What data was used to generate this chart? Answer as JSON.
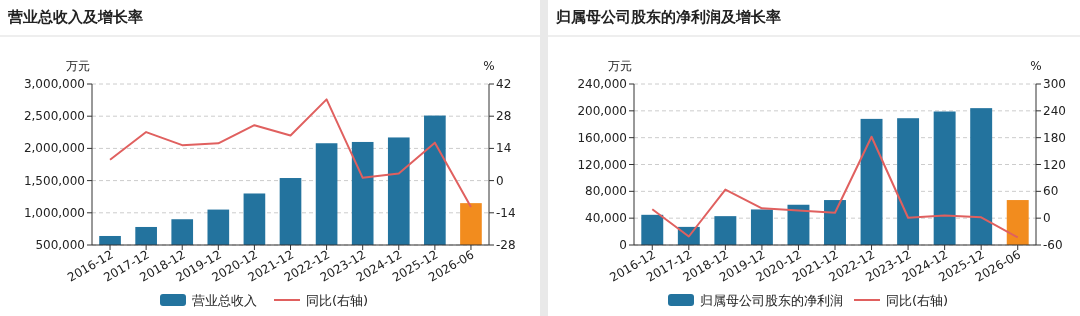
{
  "chart_data": [
    {
      "type": "bar",
      "title": "营业总收入及增长率",
      "ylabel": "万元",
      "y2label": "%",
      "categories": [
        "2016-12",
        "2017-12",
        "2018-12",
        "2019-12",
        "2020-12",
        "2021-12",
        "2022-12",
        "2023-12",
        "2024-12",
        "2025-12",
        "2026-06"
      ],
      "series": [
        {
          "name": "营业总收入",
          "color": "#23739e",
          "colors": [
            "#23739e",
            "#23739e",
            "#23739e",
            "#23739e",
            "#23739e",
            "#23739e",
            "#23739e",
            "#23739e",
            "#23739e",
            "#23739e",
            "#f28c1e"
          ],
          "values": [
            640000,
            780000,
            900000,
            1050000,
            1300000,
            1540000,
            2080000,
            2100000,
            2170000,
            2510000,
            1150000
          ]
        },
        {
          "name": "同比(右轴)",
          "type": "line",
          "axis": "y2",
          "color": "#e0605f",
          "values": [
            9.1,
            21.1,
            15.4,
            16.2,
            24.1,
            19.6,
            35.3,
            1.2,
            3.1,
            16.5,
            -11.5
          ]
        }
      ],
      "ylim": [
        500000,
        3000000
      ],
      "yticks": [
        {
          "value": 500000,
          "label": "500,000"
        },
        {
          "value": 1000000,
          "label": "1,000,000"
        },
        {
          "value": 1500000,
          "label": "1,500,000"
        },
        {
          "value": 2000000,
          "label": "2,000,000"
        },
        {
          "value": 2500000,
          "label": "2,500,000"
        },
        {
          "value": 3000000,
          "label": "3,000,000"
        }
      ],
      "y2lim": [
        -28,
        42
      ],
      "y2ticks": [
        -28,
        -14,
        0,
        14,
        28,
        42
      ],
      "grid": "y",
      "legend": "bottom",
      "marker": "none"
    },
    {
      "type": "bar",
      "title": "归属母公司股东的净利润及增长率",
      "ylabel": "万元",
      "y2label": "%",
      "categories": [
        "2016-12",
        "2017-12",
        "2018-12",
        "2019-12",
        "2020-12",
        "2021-12",
        "2022-12",
        "2023-12",
        "2024-12",
        "2025-12",
        "2026-06"
      ],
      "series": [
        {
          "name": "归属母公司股东的净利润",
          "color": "#23739e",
          "colors": [
            "#23739e",
            "#23739e",
            "#23739e",
            "#23739e",
            "#23739e",
            "#23739e",
            "#23739e",
            "#23739e",
            "#23739e",
            "#23739e",
            "#f28c1e"
          ],
          "values": [
            45000,
            27000,
            43000,
            53000,
            60000,
            67000,
            188000,
            189000,
            199000,
            204000,
            67000
          ]
        },
        {
          "name": "同比(右轴)",
          "type": "line",
          "axis": "y2",
          "color": "#e0605f",
          "values": [
            20,
            -41,
            64,
            22,
            17,
            12,
            182,
            1,
            6,
            2,
            -43
          ]
        }
      ],
      "ylim": [
        0,
        240000
      ],
      "yticks": [
        0,
        {
          "value": 40000,
          "label": "40,000"
        },
        {
          "value": 80000,
          "label": "80,000"
        },
        {
          "value": 120000,
          "label": "120,000"
        },
        {
          "value": 160000,
          "label": "160,000"
        },
        {
          "value": 200000,
          "label": "200,000"
        },
        {
          "value": 240000,
          "label": "240,000"
        }
      ],
      "y2lim": [
        -60,
        300
      ],
      "y2ticks": [
        -60,
        0,
        60,
        120,
        180,
        240,
        300
      ],
      "grid": "y",
      "legend": "bottom",
      "marker": "none"
    }
  ]
}
